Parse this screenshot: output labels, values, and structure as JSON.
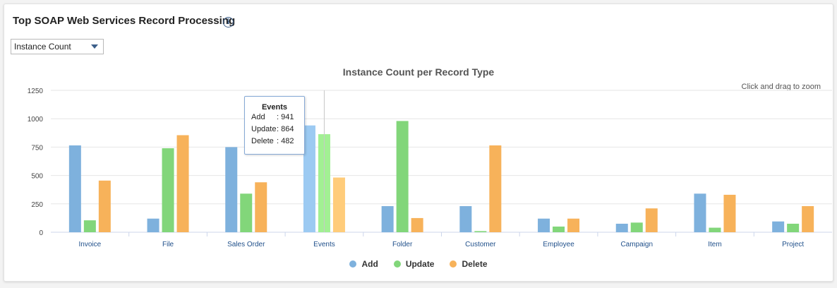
{
  "panel": {
    "title": "Top SOAP Web Services Record Processing",
    "info_icon": "info-circle-icon"
  },
  "dropdown": {
    "selected": "Instance Count",
    "icon": "caret-down-icon"
  },
  "zoom_hint": "Click and drag to zoom",
  "colors": {
    "add": "#7eb1dd",
    "update": "#82d67a",
    "delete": "#f7b25a",
    "add_hover": "#9ccaf2",
    "update_hover": "#a2f093",
    "delete_hover": "#ffcc7a",
    "axis_text": "#444444",
    "category_text": "#1f4f8a",
    "grid": "#e6e6e6"
  },
  "tooltip": {
    "title": "Events",
    "rows": [
      {
        "label": "Add",
        "value": ": 941"
      },
      {
        "label": "Update",
        "value": ": 864"
      },
      {
        "label": "Delete",
        "value": ": 482"
      }
    ]
  },
  "chart_data": {
    "type": "bar",
    "title": "Instance Count per Record Type",
    "xlabel": "",
    "ylabel": "",
    "ylim": [
      0,
      1250
    ],
    "yticks": [
      0,
      250,
      500,
      750,
      1000,
      1250
    ],
    "grid": true,
    "legend_position": "bottom-center",
    "highlighted_category": "Events",
    "categories": [
      "Invoice",
      "File",
      "Sales Order",
      "Events",
      "Folder",
      "Customer",
      "Employee",
      "Campaign",
      "Item",
      "Project"
    ],
    "series": [
      {
        "name": "Add",
        "values": [
          765,
          120,
          750,
          941,
          230,
          230,
          120,
          75,
          340,
          95
        ]
      },
      {
        "name": "Update",
        "values": [
          105,
          740,
          340,
          864,
          980,
          10,
          50,
          85,
          40,
          75
        ]
      },
      {
        "name": "Delete",
        "values": [
          455,
          855,
          440,
          482,
          125,
          765,
          120,
          210,
          330,
          230
        ]
      }
    ]
  }
}
